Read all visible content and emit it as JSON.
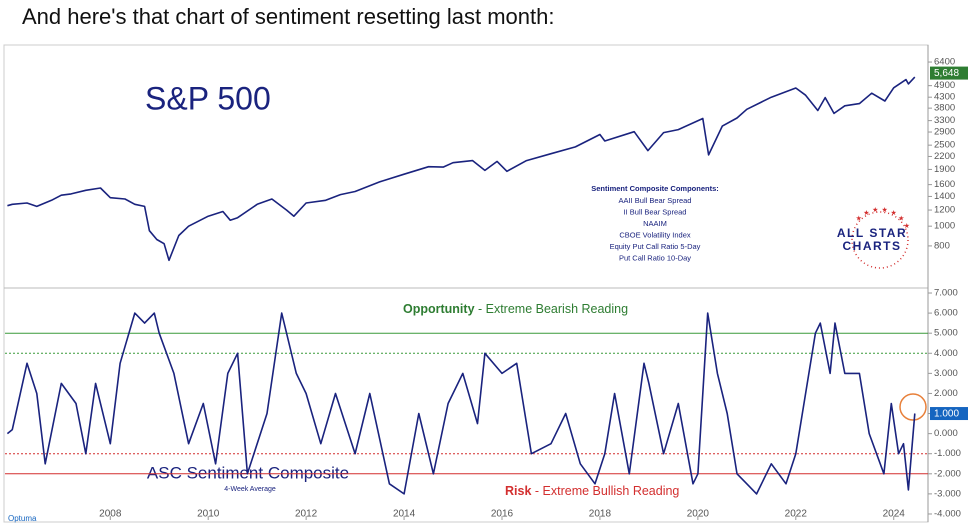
{
  "heading": "And here's that chart of sentiment resetting last month:",
  "footer": "Optuma",
  "chart_data": [
    {
      "type": "line",
      "title": "S&P 500",
      "log": true,
      "color": "#1a237e",
      "xlim": [
        2005.85,
        2024.7
      ],
      "ylim": [
        497,
        7760
      ],
      "yticks": [
        800,
        1000,
        1200,
        1400,
        1600,
        1900,
        2200,
        2500,
        2900,
        3300,
        3800,
        4300,
        4900,
        6400
      ],
      "current": {
        "value": 5648,
        "label": "5,648",
        "color": "#2e7d32"
      },
      "x": [
        2005.9,
        2006.0,
        2006.3,
        2006.5,
        2006.8,
        2007.0,
        2007.2,
        2007.5,
        2007.8,
        2008.0,
        2008.3,
        2008.5,
        2008.7,
        2008.8,
        2008.95,
        2009.1,
        2009.2,
        2009.4,
        2009.6,
        2010.0,
        2010.3,
        2010.45,
        2010.6,
        2011.0,
        2011.3,
        2011.6,
        2011.75,
        2012.0,
        2012.4,
        2012.7,
        2013.0,
        2013.5,
        2014.0,
        2014.5,
        2014.8,
        2015.0,
        2015.4,
        2015.65,
        2015.9,
        2016.1,
        2016.5,
        2017.0,
        2017.5,
        2018.0,
        2018.1,
        2018.7,
        2018.98,
        2019.3,
        2019.6,
        2020.1,
        2020.22,
        2020.5,
        2020.8,
        2021.0,
        2021.5,
        2022.0,
        2022.2,
        2022.45,
        2022.6,
        2022.78,
        2023.0,
        2023.3,
        2023.55,
        2023.82,
        2024.0,
        2024.25,
        2024.3,
        2024.43
      ],
      "values": [
        1260,
        1280,
        1300,
        1250,
        1340,
        1420,
        1440,
        1500,
        1540,
        1380,
        1360,
        1280,
        1250,
        950,
        860,
        820,
        680,
        900,
        1000,
        1120,
        1180,
        1070,
        1100,
        1280,
        1360,
        1200,
        1120,
        1300,
        1340,
        1430,
        1480,
        1650,
        1800,
        1960,
        1950,
        2050,
        2100,
        1880,
        2080,
        1860,
        2100,
        2270,
        2450,
        2820,
        2620,
        2910,
        2350,
        2880,
        2980,
        3380,
        2240,
        3100,
        3400,
        3750,
        4300,
        4770,
        4400,
        3700,
        4280,
        3580,
        3900,
        4000,
        4500,
        4120,
        4780,
        5250,
        5000,
        5400
      ],
      "components_title": "Sentiment Composite Components:",
      "components": [
        "AAII Bull Bear Spread",
        "II Bull Bear Spread",
        "NAAIM",
        "CBOE Volatility Index",
        "Equity Put Call Ratio 5-Day",
        "Put Call Ratio 10-Day"
      ],
      "logo": [
        "ALL STAR",
        "CHARTS"
      ]
    },
    {
      "type": "line",
      "title": "ASC Sentiment Composite",
      "subtitle": "4-Week Average",
      "color": "#1a237e",
      "xlim": [
        2005.85,
        2024.7
      ],
      "ylim": [
        -4.3,
        7.2
      ],
      "xticks": [
        2008,
        2010,
        2012,
        2014,
        2016,
        2018,
        2020,
        2022,
        2024
      ],
      "yticks": [
        {
          "value": 7,
          "label": "7.000"
        },
        {
          "value": 6,
          "label": "6.000"
        },
        {
          "value": 5,
          "label": "5.000"
        },
        {
          "value": 4,
          "label": "4.000"
        },
        {
          "value": 3,
          "label": "3.000"
        },
        {
          "value": 2,
          "label": "2.000"
        },
        {
          "value": 1,
          "label": "1.000"
        },
        {
          "value": 0,
          "label": "0.000"
        },
        {
          "value": -1,
          "label": "-1.000"
        },
        {
          "value": -2,
          "label": "-2.000"
        },
        {
          "value": -3,
          "label": "-3.000"
        },
        {
          "value": -4,
          "label": "-4.000"
        }
      ],
      "current": {
        "value": 1,
        "label": "1.000",
        "color": "#1565c0"
      },
      "reference_lines": [
        {
          "value": 5,
          "color": "#3a9a3a",
          "dashed": false
        },
        {
          "value": 4,
          "color": "#3a9a3a",
          "dashed": true
        },
        {
          "value": -1,
          "color": "#d32f2f",
          "dashed": true
        },
        {
          "value": -2,
          "color": "#d32f2f",
          "dashed": false
        }
      ],
      "opportunity": {
        "label": "Opportunity",
        "text": " - Extreme Bearish Reading",
        "color": "#2e7d32"
      },
      "risk": {
        "label": "Risk",
        "text": " - Extreme Bullish Reading",
        "color": "#d32f2f"
      },
      "x": [
        2005.9,
        2006.0,
        2006.3,
        2006.5,
        2006.67,
        2007.0,
        2007.3,
        2007.5,
        2007.7,
        2008.0,
        2008.2,
        2008.5,
        2008.7,
        2008.9,
        2009.0,
        2009.3,
        2009.6,
        2009.9,
        2010.15,
        2010.4,
        2010.6,
        2010.8,
        2011.2,
        2011.5,
        2011.8,
        2012.0,
        2012.3,
        2012.6,
        2013.0,
        2013.3,
        2013.7,
        2014.0,
        2014.3,
        2014.6,
        2014.9,
        2015.2,
        2015.5,
        2015.65,
        2016.0,
        2016.3,
        2016.6,
        2017.0,
        2017.3,
        2017.6,
        2017.9,
        2018.1,
        2018.3,
        2018.6,
        2018.9,
        2019.0,
        2019.3,
        2019.6,
        2019.9,
        2020.0,
        2020.2,
        2020.4,
        2020.6,
        2020.8,
        2021.0,
        2021.2,
        2021.5,
        2021.8,
        2022.0,
        2022.2,
        2022.4,
        2022.5,
        2022.7,
        2022.8,
        2023.0,
        2023.3,
        2023.5,
        2023.8,
        2023.95,
        2024.1,
        2024.2,
        2024.3,
        2024.43
      ],
      "values": [
        0,
        0.2,
        3.5,
        2,
        -1.5,
        2.5,
        1.5,
        -1,
        2.5,
        -0.5,
        3.5,
        6,
        5.5,
        6,
        5,
        3,
        -0.5,
        1.5,
        -1.5,
        3,
        4,
        -2,
        1,
        6,
        3,
        2,
        -0.5,
        2,
        -1,
        2,
        -2.5,
        -3,
        1,
        -2,
        1.5,
        3,
        0.5,
        4,
        3,
        3.5,
        -1,
        -0.5,
        1,
        -1.5,
        -2.5,
        -1,
        2,
        -2,
        3.5,
        2.5,
        -1,
        1.5,
        -2.5,
        -2,
        6,
        3,
        1,
        -2,
        -2.5,
        -3,
        -1.5,
        -2.5,
        -1,
        2,
        5,
        5.5,
        3,
        5.5,
        3,
        3,
        0,
        -2,
        1.5,
        -1,
        -0.5,
        -2.8,
        1
      ]
    }
  ]
}
